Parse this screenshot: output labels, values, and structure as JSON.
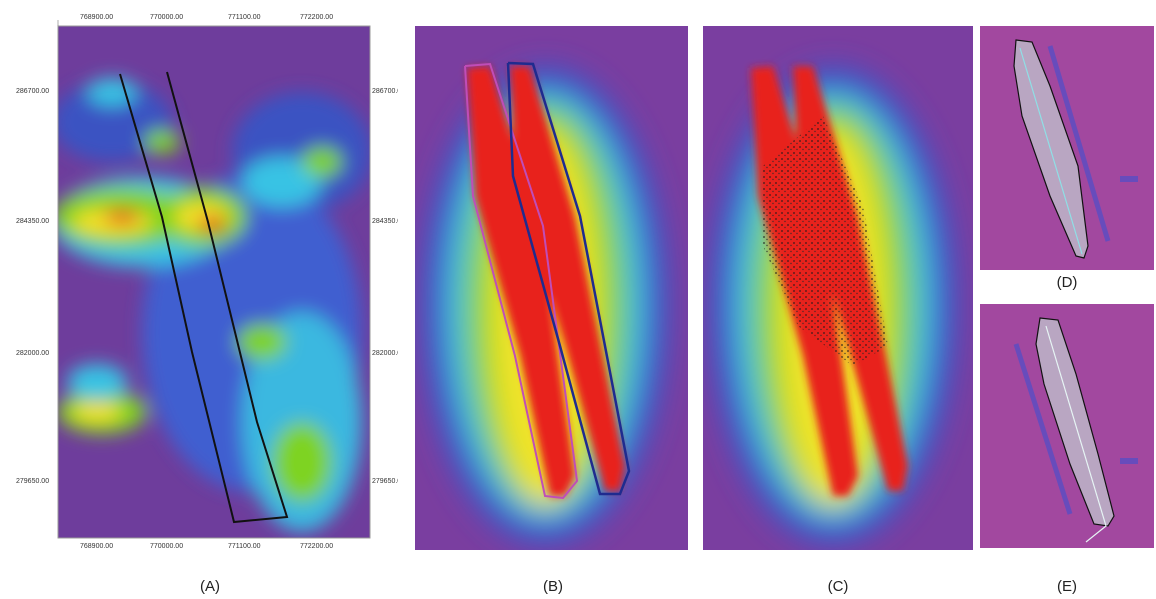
{
  "figure": {
    "panels": [
      {
        "id": "A",
        "caption": "(A)"
      },
      {
        "id": "B",
        "caption": "(B)"
      },
      {
        "id": "C",
        "caption": "(C)"
      },
      {
        "id": "D",
        "caption": "(D)"
      },
      {
        "id": "E",
        "caption": "(E)"
      }
    ],
    "panelA": {
      "x_ticks": [
        "768900.00",
        "770000.00",
        "771100.00",
        "772200.00"
      ],
      "y_ticks": [
        "286700.00",
        "284350.00",
        "282000.00",
        "279650.00"
      ]
    },
    "colors": {
      "background_low": "#7a3a9a",
      "mid": "#3a4fc0",
      "cyan": "#36c8e8",
      "green": "#7ed321",
      "yellow": "#f5e625",
      "red": "#e8211c",
      "panel_de_background": "#a2489f"
    }
  }
}
